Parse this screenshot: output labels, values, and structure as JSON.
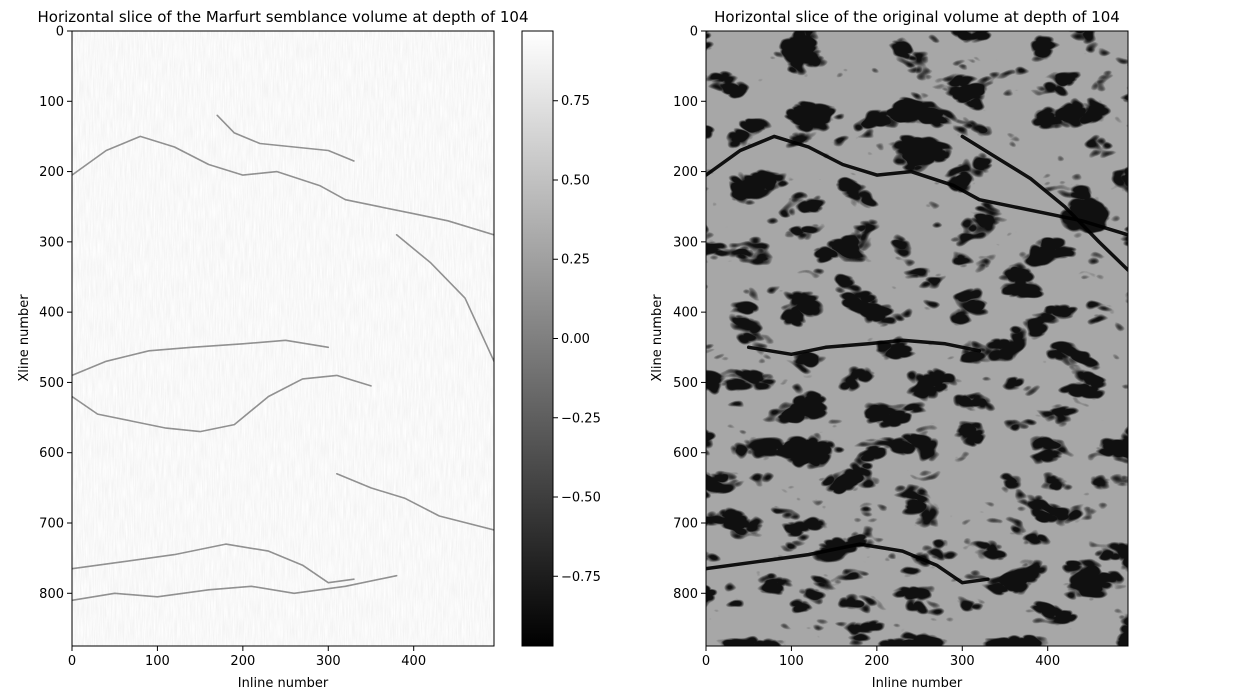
{
  "chart_data": [
    {
      "type": "heatmap",
      "title": "Horizontal slice of the Marfurt semblance volume at depth of 104",
      "xlabel": "Inline number",
      "ylabel": "Xline number",
      "xlim": [
        0,
        494
      ],
      "ylim": [
        875,
        0
      ],
      "xticks": [
        0,
        100,
        200,
        300,
        400
      ],
      "yticks": [
        0,
        100,
        200,
        300,
        400,
        500,
        600,
        700,
        800
      ],
      "colormap": "gray",
      "colorbar": {
        "range": [
          -0.97,
          0.97
        ],
        "ticks": [
          0.75,
          0.5,
          0.25,
          0.0,
          -0.25,
          -0.5,
          -0.75
        ],
        "tick_labels": [
          "0.75",
          "0.50",
          "0.25",
          "0.00",
          "−0.25",
          "−0.50",
          "−0.75"
        ]
      },
      "features": [
        {
          "name": "fault",
          "points": [
            [
              0,
              205
            ],
            [
              40,
              170
            ],
            [
              80,
              150
            ],
            [
              120,
              165
            ],
            [
              160,
              190
            ],
            [
              200,
              205
            ],
            [
              240,
              200
            ],
            [
              290,
              220
            ],
            [
              320,
              240
            ],
            [
              360,
              250
            ],
            [
              400,
              260
            ],
            [
              440,
              270
            ],
            [
              494,
              290
            ]
          ]
        },
        {
          "name": "fault",
          "points": [
            [
              0,
              490
            ],
            [
              40,
              470
            ],
            [
              90,
              455
            ],
            [
              140,
              450
            ],
            [
              200,
              445
            ],
            [
              250,
              440
            ],
            [
              300,
              450
            ]
          ]
        },
        {
          "name": "fault",
          "points": [
            [
              0,
              520
            ],
            [
              30,
              545
            ],
            [
              70,
              555
            ],
            [
              110,
              565
            ],
            [
              150,
              570
            ],
            [
              190,
              560
            ],
            [
              230,
              520
            ],
            [
              270,
              495
            ],
            [
              310,
              490
            ],
            [
              350,
              505
            ]
          ]
        },
        {
          "name": "fault",
          "points": [
            [
              0,
              765
            ],
            [
              60,
              755
            ],
            [
              120,
              745
            ],
            [
              180,
              730
            ],
            [
              230,
              740
            ],
            [
              270,
              760
            ],
            [
              300,
              785
            ],
            [
              330,
              780
            ]
          ]
        },
        {
          "name": "fault",
          "points": [
            [
              0,
              810
            ],
            [
              50,
              800
            ],
            [
              100,
              805
            ],
            [
              160,
              795
            ],
            [
              210,
              790
            ],
            [
              260,
              800
            ],
            [
              320,
              790
            ],
            [
              380,
              775
            ]
          ]
        },
        {
          "name": "fault",
          "points": [
            [
              310,
              630
            ],
            [
              350,
              650
            ],
            [
              390,
              665
            ],
            [
              430,
              690
            ],
            [
              494,
              710
            ]
          ]
        },
        {
          "name": "fault",
          "points": [
            [
              380,
              290
            ],
            [
              420,
              330
            ],
            [
              460,
              380
            ],
            [
              494,
              470
            ]
          ]
        },
        {
          "name": "fault",
          "points": [
            [
              170,
              120
            ],
            [
              190,
              145
            ],
            [
              220,
              160
            ],
            [
              260,
              165
            ],
            [
              300,
              170
            ],
            [
              330,
              185
            ]
          ]
        }
      ]
    },
    {
      "type": "heatmap",
      "title": "Horizontal slice of the original volume at depth of 104",
      "xlabel": "Inline number",
      "ylabel": "Xline number",
      "xlim": [
        0,
        494
      ],
      "ylim": [
        875,
        0
      ],
      "xticks": [
        0,
        100,
        200,
        300,
        400
      ],
      "yticks": [
        0,
        100,
        200,
        300,
        400,
        500,
        600,
        700,
        800
      ],
      "colormap": "gray",
      "features": [
        {
          "name": "fault",
          "points": [
            [
              0,
              205
            ],
            [
              40,
              170
            ],
            [
              80,
              150
            ],
            [
              120,
              165
            ],
            [
              160,
              190
            ],
            [
              200,
              205
            ],
            [
              240,
              200
            ],
            [
              290,
              220
            ],
            [
              320,
              240
            ],
            [
              360,
              250
            ],
            [
              400,
              260
            ],
            [
              440,
              270
            ],
            [
              494,
              290
            ]
          ]
        },
        {
          "name": "fault",
          "points": [
            [
              0,
              765
            ],
            [
              60,
              755
            ],
            [
              120,
              745
            ],
            [
              180,
              730
            ],
            [
              230,
              740
            ],
            [
              270,
              760
            ],
            [
              300,
              785
            ],
            [
              330,
              780
            ]
          ]
        },
        {
          "name": "fault",
          "points": [
            [
              50,
              450
            ],
            [
              100,
              460
            ],
            [
              140,
              450
            ],
            [
              190,
              445
            ],
            [
              230,
              440
            ],
            [
              280,
              445
            ],
            [
              320,
              455
            ]
          ]
        },
        {
          "name": "fault",
          "points": [
            [
              300,
              150
            ],
            [
              340,
              180
            ],
            [
              380,
              210
            ],
            [
              420,
              250
            ],
            [
              460,
              300
            ],
            [
              494,
              340
            ]
          ]
        }
      ]
    }
  ]
}
